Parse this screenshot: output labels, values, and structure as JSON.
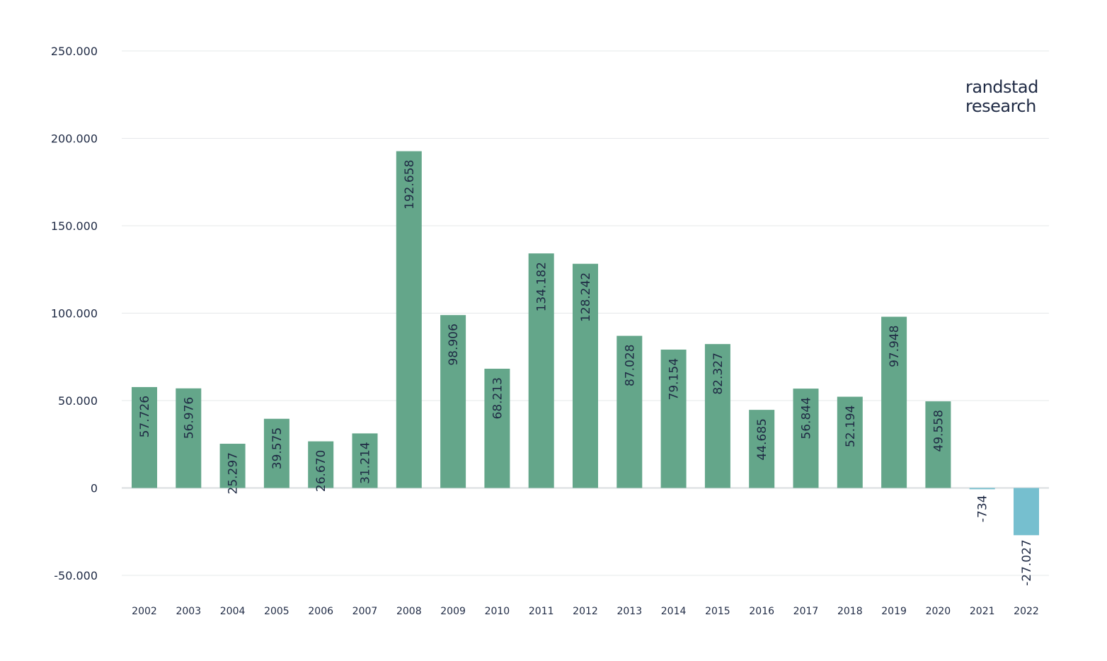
{
  "brand": {
    "line1": "randstad",
    "line2": "research"
  },
  "colors": {
    "positive_bar": "#64a68a",
    "negative_bar": "#76bfcf",
    "text": "#1f2a44",
    "grid": "#e6e8ea",
    "zero_line": "#d9dcdf"
  },
  "chart_data": {
    "type": "bar",
    "title": "",
    "xlabel": "",
    "ylabel": "",
    "ylim": [
      -50000,
      250000
    ],
    "y_ticks": [
      250000,
      200000,
      150000,
      100000,
      50000,
      0,
      -50000
    ],
    "y_tick_labels": [
      "250.000",
      "200.000",
      "150.000",
      "100.000",
      "50.000",
      "0",
      "-50.000"
    ],
    "grid": true,
    "legend": "none",
    "categories": [
      "2002",
      "2003",
      "2004",
      "2005",
      "2006",
      "2007",
      "2008",
      "2009",
      "2010",
      "2011",
      "2012",
      "2013",
      "2014",
      "2015",
      "2016",
      "2017",
      "2018",
      "2019",
      "2020",
      "2021",
      "2022"
    ],
    "values": [
      57726,
      56976,
      25297,
      39575,
      26670,
      31214,
      192658,
      98906,
      68213,
      134182,
      128242,
      87028,
      79154,
      82327,
      44685,
      56844,
      52194,
      97948,
      49558,
      -734,
      -27027
    ],
    "data_labels": [
      "57.726",
      "56.976",
      "25.297",
      "39.575",
      "26.670",
      "31.214",
      "192.658",
      "98.906",
      "68.213",
      "134.182",
      "128.242",
      "87.028",
      "79.154",
      "82.327",
      "44.685",
      "56.844",
      "52.194",
      "97.948",
      "49.558",
      "-734",
      "-27.027"
    ]
  }
}
